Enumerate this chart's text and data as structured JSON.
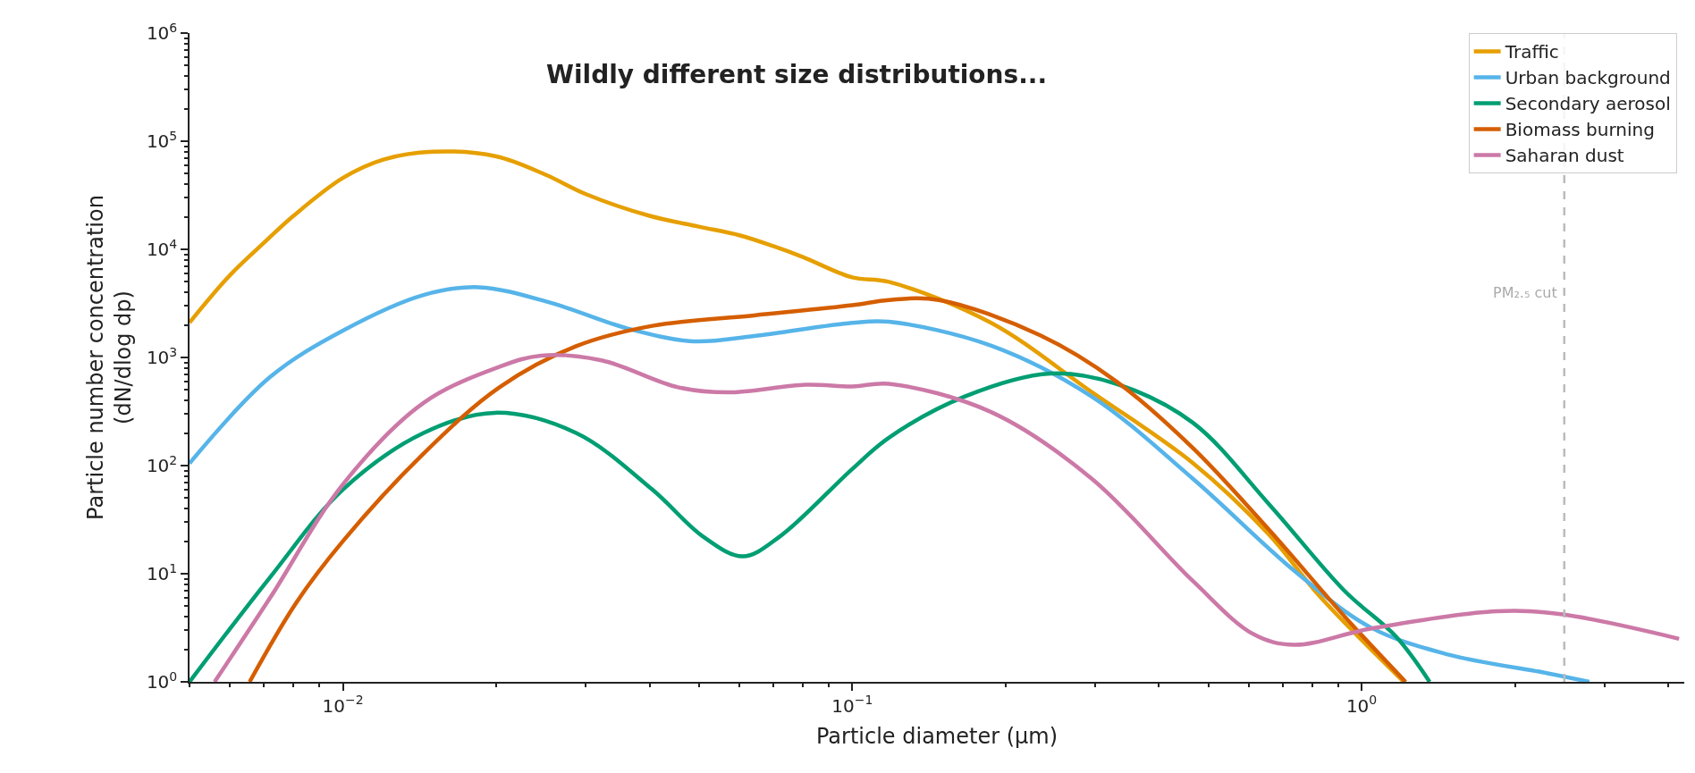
{
  "chart_data": {
    "type": "line",
    "title": "Wildly different size distributions...",
    "xlabel": "Particle diameter (µm)",
    "ylabel": "Particle number concentration\n(dN/dlog dp)",
    "log": "xy",
    "legend": "top right",
    "marker": "none",
    "line_style": "solid",
    "xlim": [
      0.005,
      4.3
    ],
    "ylim": [
      1,
      1000000
    ],
    "xticks": [
      {
        "value": 0.01,
        "label": "10$^{−2}$"
      },
      {
        "value": 0.1,
        "label": "10$^{−1}$"
      },
      {
        "value": 1,
        "label": "10$^{0}$"
      }
    ],
    "yticks": [
      {
        "value": 1,
        "label": "10$^{0}$"
      },
      {
        "value": 10,
        "label": "10$^{1}$"
      },
      {
        "value": 100,
        "label": "10$^{2}$"
      },
      {
        "value": 1000,
        "label": "10$^{3}$"
      },
      {
        "value": 10000,
        "label": "10$^{4}$"
      },
      {
        "value": 100000,
        "label": "10$^{5}$"
      },
      {
        "value": 1000000,
        "label": "10$^{6}$"
      }
    ],
    "ref_lines": [
      {
        "axis": "x",
        "value": 2.5,
        "label": "PM₂.₅ cut",
        "color": "#bbbbbb",
        "line_style": "dashed"
      }
    ],
    "series": [
      {
        "name": "Traffic",
        "color": "#e69f00",
        "x": [
          0.005,
          0.006,
          0.007,
          0.008,
          0.01,
          0.012,
          0.015,
          0.02,
          0.025,
          0.03,
          0.04,
          0.05,
          0.06,
          0.07,
          0.08,
          0.1,
          0.118,
          0.187,
          0.295,
          0.466,
          0.658,
          0.827,
          1.21
        ],
        "values": [
          2100,
          5750,
          11500,
          20400,
          45700,
          67600,
          80000,
          72400,
          49000,
          32400,
          20400,
          16200,
          13500,
          10700,
          8500,
          5500,
          5000,
          2100,
          480,
          106,
          23,
          6.2,
          1
        ]
      },
      {
        "name": "Urban background",
        "color": "#56b4e9",
        "x": [
          0.005,
          0.0072,
          0.01,
          0.0144,
          0.0185,
          0.0256,
          0.0361,
          0.0487,
          0.0642,
          0.1,
          0.118,
          0.187,
          0.295,
          0.466,
          0.737,
          1.04,
          1.47,
          2.32,
          2.8
        ],
        "values": [
          105,
          660,
          1770,
          3780,
          4460,
          3200,
          1860,
          1410,
          1580,
          2090,
          2140,
          1290,
          436,
          76,
          10.7,
          3.2,
          1.8,
          1.2,
          1
        ]
      },
      {
        "name": "Secondary aerosol",
        "color": "#009e73",
        "x": [
          0.005,
          0.0072,
          0.01,
          0.0144,
          0.0199,
          0.0287,
          0.0405,
          0.051,
          0.061,
          0.072,
          0.1,
          0.118,
          0.166,
          0.245,
          0.33,
          0.466,
          0.658,
          0.927,
          1.17,
          1.36
        ],
        "values": [
          1,
          9.3,
          60,
          200,
          308,
          200,
          60,
          22,
          14.5,
          22,
          93,
          181,
          434,
          710,
          570,
          250,
          44,
          6.9,
          2.6,
          1
        ]
      },
      {
        "name": "Biomass burning",
        "color": "#d55e00",
        "x": [
          0.00656,
          0.0081,
          0.01,
          0.0144,
          0.0203,
          0.0287,
          0.0405,
          0.0642,
          0.1,
          0.118,
          0.148,
          0.234,
          0.33,
          0.466,
          0.658,
          0.927,
          1.22
        ],
        "values": [
          1,
          5.4,
          20,
          129,
          530,
          1270,
          1960,
          2450,
          3040,
          3400,
          3400,
          1600,
          600,
          146,
          25.5,
          4.0,
          1
        ]
      },
      {
        "name": "Saharan dust",
        "color": "#cc79a7",
        "x": [
          0.0056,
          0.0072,
          0.01,
          0.0144,
          0.0203,
          0.0245,
          0.0322,
          0.0455,
          0.057,
          0.081,
          0.1,
          0.118,
          0.187,
          0.295,
          0.466,
          0.614,
          0.737,
          1.04,
          1.84,
          2.48,
          4.2
        ],
        "values": [
          1,
          6,
          67,
          380,
          820,
          1040,
          940,
          530,
          475,
          560,
          540,
          570,
          314,
          76,
          8.6,
          2.75,
          2.2,
          3.1,
          4.5,
          4.2,
          2.5
        ]
      }
    ]
  }
}
